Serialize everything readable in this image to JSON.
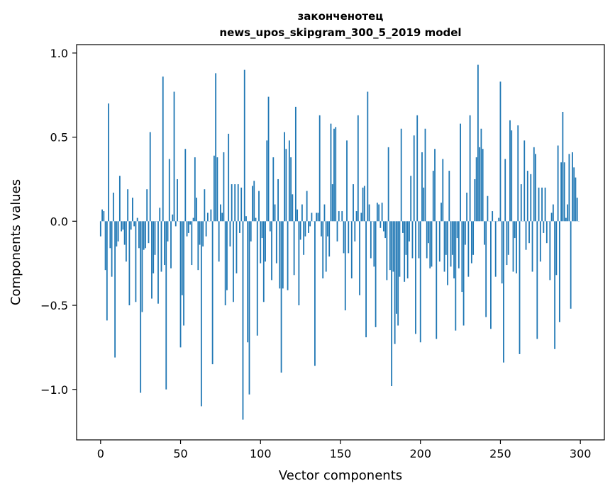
{
  "chart_data": {
    "type": "bar",
    "title_line1": "законченотец",
    "title_line2": "news_upos_skipgram_300_5_2019 model",
    "xlabel": "Vector components",
    "ylabel": "Components values",
    "xlim": [
      -15,
      315
    ],
    "ylim": [
      -1.3,
      1.05
    ],
    "bar_color": "#1f77b4",
    "x_ticks": [
      {
        "v": 0,
        "label": "0"
      },
      {
        "v": 50,
        "label": "50"
      },
      {
        "v": 100,
        "label": "100"
      },
      {
        "v": 150,
        "label": "150"
      },
      {
        "v": 200,
        "label": "200"
      },
      {
        "v": 250,
        "label": "250"
      },
      {
        "v": 300,
        "label": "300"
      }
    ],
    "y_ticks": [
      {
        "v": 1.0,
        "label": "1.0"
      },
      {
        "v": 0.5,
        "label": "0.5"
      },
      {
        "v": 0.0,
        "label": "0.0"
      },
      {
        "v": -0.5,
        "label": "−0.5"
      },
      {
        "v": -1.0,
        "label": "−1.0"
      }
    ],
    "values": [
      -0.09,
      0.07,
      0.06,
      -0.29,
      -0.59,
      0.7,
      -0.16,
      -0.33,
      0.17,
      -0.81,
      -0.15,
      -0.12,
      0.27,
      -0.06,
      -0.05,
      -0.14,
      -0.24,
      0.19,
      -0.5,
      -0.05,
      0.14,
      -0.03,
      -0.48,
      0.02,
      -0.16,
      -1.02,
      -0.54,
      -0.17,
      -0.16,
      0.19,
      -0.13,
      0.53,
      -0.46,
      -0.31,
      -0.2,
      0.0,
      -0.49,
      0.08,
      -0.3,
      0.86,
      -0.26,
      -1.0,
      -0.12,
      0.37,
      -0.28,
      0.04,
      0.77,
      -0.03,
      0.25,
      0.0,
      -0.75,
      -0.44,
      -0.62,
      0.43,
      -0.09,
      -0.07,
      -0.02,
      -0.26,
      0.02,
      0.38,
      0.14,
      -0.29,
      -0.14,
      -1.1,
      -0.15,
      0.19,
      -0.09,
      0.05,
      0.0,
      0.07,
      -0.85,
      0.39,
      0.88,
      0.38,
      -0.24,
      0.1,
      0.05,
      0.41,
      -0.5,
      -0.41,
      0.52,
      -0.15,
      0.22,
      -0.48,
      0.22,
      -0.31,
      0.22,
      -0.07,
      0.2,
      -1.18,
      0.9,
      0.03,
      -0.72,
      -1.03,
      -0.12,
      0.21,
      0.24,
      0.02,
      -0.68,
      0.18,
      -0.25,
      -0.1,
      -0.48,
      -0.24,
      0.48,
      0.74,
      -0.06,
      -0.35,
      0.38,
      0.1,
      -0.25,
      0.25,
      -0.4,
      -0.9,
      -0.4,
      0.53,
      0.43,
      -0.41,
      0.48,
      0.38,
      0.16,
      -0.32,
      0.68,
      0.07,
      -0.5,
      -0.11,
      0.1,
      -0.2,
      -0.09,
      0.18,
      -0.07,
      -0.03,
      0.05,
      0.0,
      -0.86,
      0.05,
      0.05,
      0.63,
      -0.09,
      -0.34,
      0.1,
      -0.3,
      -0.09,
      -0.21,
      0.58,
      0.22,
      0.55,
      0.56,
      -0.12,
      0.06,
      0.0,
      0.06,
      -0.19,
      -0.53,
      0.48,
      -0.19,
      0.0,
      -0.34,
      0.22,
      -0.12,
      0.06,
      0.63,
      -0.44,
      0.05,
      0.2,
      0.21,
      -0.69,
      0.77,
      0.1,
      -0.22,
      0.0,
      -0.27,
      -0.63,
      0.11,
      0.1,
      -0.04,
      0.11,
      -0.06,
      -0.1,
      -0.35,
      0.44,
      -0.29,
      -0.98,
      -0.3,
      -0.73,
      -0.55,
      -0.62,
      -0.33,
      0.55,
      -0.07,
      -0.36,
      -0.2,
      -0.34,
      -0.12,
      0.27,
      -0.22,
      0.51,
      -0.67,
      0.63,
      -0.22,
      -0.72,
      0.41,
      0.2,
      0.55,
      -0.22,
      -0.13,
      -0.28,
      -0.27,
      0.3,
      0.43,
      -0.7,
      0.0,
      -0.24,
      0.11,
      0.37,
      -0.3,
      -0.2,
      -0.38,
      0.3,
      -0.27,
      -0.2,
      -0.34,
      -0.65,
      -0.1,
      -0.28,
      0.58,
      -0.42,
      -0.62,
      -0.14,
      0.17,
      -0.33,
      0.63,
      -0.25,
      -0.2,
      0.25,
      0.38,
      0.93,
      0.44,
      0.55,
      0.43,
      -0.14,
      -0.57,
      0.15,
      0.0,
      -0.64,
      0.06,
      0.0,
      -0.33,
      0.0,
      0.02,
      0.83,
      -0.37,
      -0.84,
      0.37,
      -0.26,
      -0.2,
      0.6,
      0.54,
      -0.3,
      -0.1,
      -0.31,
      0.57,
      -0.79,
      0.22,
      0.0,
      0.48,
      -0.17,
      0.3,
      -0.13,
      0.28,
      -0.3,
      0.44,
      0.4,
      -0.7,
      0.2,
      -0.24,
      0.2,
      -0.07,
      0.2,
      -0.13,
      0.0,
      -0.35,
      0.05,
      0.1,
      -0.76,
      -0.32,
      0.45,
      -0.6,
      0.35,
      0.65,
      0.35,
      0.02,
      0.1,
      0.4,
      -0.52,
      0.41,
      0.32,
      0.26,
      0.14,
      0.0
    ]
  }
}
